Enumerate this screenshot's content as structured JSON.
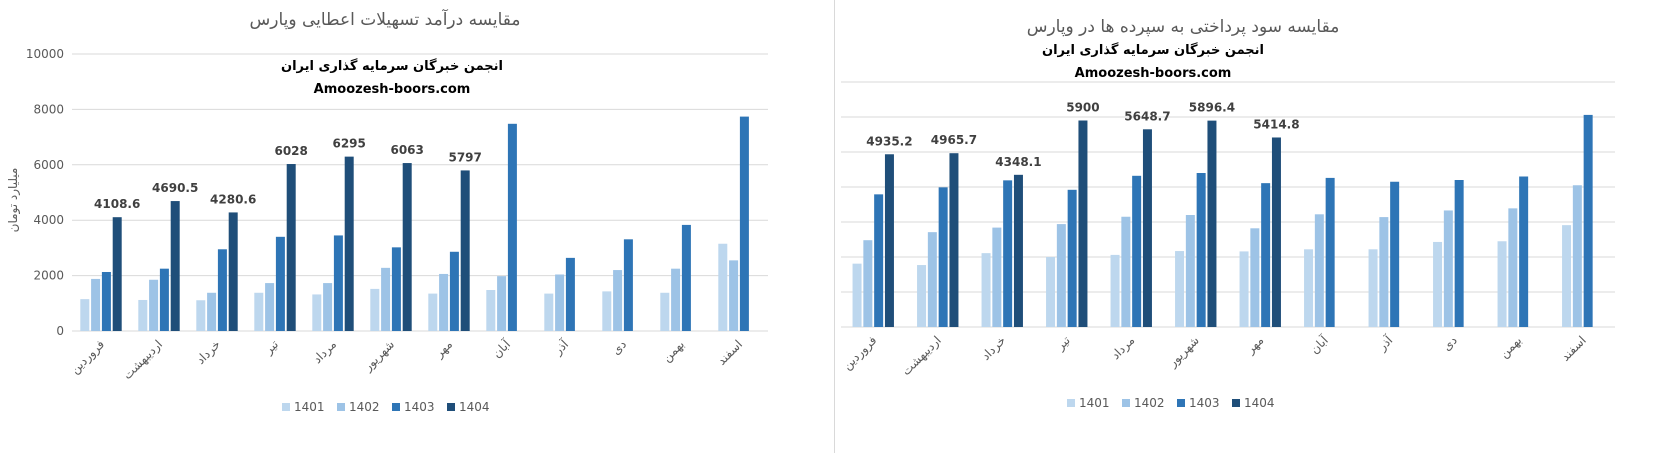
{
  "colors": {
    "1401": "#bdd7ee",
    "1402": "#9dc3e6",
    "1403": "#2e75b6",
    "1404": "#1f4e79",
    "grid": "#d9d9d9",
    "axis_text": "#595959"
  },
  "chart_data": [
    {
      "type": "bar",
      "title": "مقایسه درآمد تسهیلات اعطایی وپارس",
      "watermark": [
        "انجمن خبرگان سرمایه گذاری ایران",
        "Amoozesh-boors.com"
      ],
      "ylabel": "میلیارد تومان",
      "xlabel": "",
      "ylim": [
        0,
        10000
      ],
      "yticks": [
        0,
        2000,
        4000,
        6000,
        8000,
        10000
      ],
      "grid": true,
      "legend": "bottom",
      "categories": [
        "فروردین",
        "اردیبهشت",
        "خرداد",
        "تیر",
        "مرداد",
        "شهریور",
        "مهر",
        "آبان",
        "آذر",
        "دی",
        "بهمن",
        "اسفند"
      ],
      "series": [
        {
          "name": "1401",
          "values": [
            1150,
            1120,
            1110,
            1380,
            1320,
            1520,
            1350,
            1480,
            1350,
            1430,
            1380,
            3150
          ]
        },
        {
          "name": "1402",
          "values": [
            1880,
            1850,
            1380,
            1730,
            1730,
            2280,
            2060,
            1980,
            2040,
            2200,
            2250,
            2550
          ]
        },
        {
          "name": "1403",
          "values": [
            2130,
            2250,
            2950,
            3400,
            3450,
            3020,
            2860,
            7480,
            2640,
            3310,
            3830,
            7740
          ]
        },
        {
          "name": "1404",
          "values": [
            4108.6,
            4690.5,
            4280.6,
            6028,
            6295,
            6063,
            5797,
            null,
            null,
            null,
            null,
            null
          ]
        }
      ],
      "data_labels": {
        "series": "1404",
        "labels": [
          "4108.6",
          "4690.5",
          "4280.6",
          "6028",
          "6295",
          "6063",
          "5797"
        ]
      }
    },
    {
      "type": "bar",
      "title": "مقایسه سود پرداختی به سپرده ها در وپارس",
      "watermark": [
        "انجمن خبرگان سرمایه گذاری ایران",
        "Amoozesh-boors.com"
      ],
      "ylabel": "",
      "xlabel": "",
      "ylim": [
        0,
        7000
      ],
      "yticks": [
        0,
        1000,
        2000,
        3000,
        4000,
        5000,
        6000,
        7000
      ],
      "grid": true,
      "legend": "bottom",
      "categories": [
        "فروردین",
        "اردیبهشت",
        "خرداد",
        "تیر",
        "مرداد",
        "شهریور",
        "مهر",
        "آبان",
        "آذر",
        "دی",
        "بهمن",
        "اسفند"
      ],
      "series": [
        {
          "name": "1401",
          "values": [
            1810,
            1770,
            2110,
            2000,
            2060,
            2170,
            2160,
            2220,
            2220,
            2430,
            2450,
            2910
          ]
        },
        {
          "name": "1402",
          "values": [
            2480,
            2710,
            2840,
            2940,
            3150,
            3200,
            2820,
            3220,
            3140,
            3330,
            3390,
            4050
          ]
        },
        {
          "name": "1403",
          "values": [
            3790,
            3990,
            4190,
            3920,
            4320,
            4400,
            4110,
            4260,
            4150,
            4200,
            4300,
            6060
          ]
        },
        {
          "name": "1404",
          "values": [
            4935.2,
            4965.7,
            4348.1,
            5900,
            5648.7,
            5896.4,
            5414.8,
            null,
            null,
            null,
            null,
            null
          ]
        }
      ],
      "data_labels": {
        "series": "1404",
        "labels": [
          "4935.2",
          "4965.7",
          "4348.1",
          "5900",
          "5648.7",
          "5896.4",
          "5414.8"
        ]
      }
    }
  ]
}
